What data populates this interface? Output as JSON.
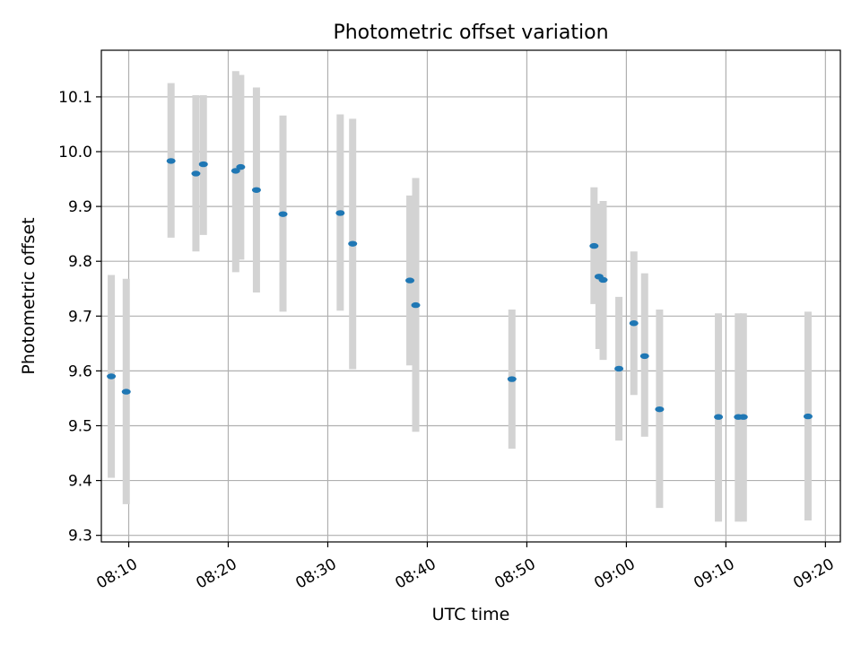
{
  "chart_data": {
    "type": "scatter",
    "title": "Photometric offset variation",
    "xlabel": "UTC time",
    "ylabel": "Photometric offset",
    "xlim": [
      "08:07:15",
      "09:21:30"
    ],
    "ylim": [
      9.288,
      10.185
    ],
    "x_ticks": [
      "08:10",
      "08:20",
      "08:30",
      "08:40",
      "08:50",
      "09:00",
      "09:10",
      "09:20"
    ],
    "y_ticks": [
      9.3,
      9.4,
      9.5,
      9.6,
      9.7,
      9.8,
      9.9,
      10.0,
      10.1
    ],
    "grid": true,
    "colors": {
      "marker": "#1f77b4",
      "errorbar": "#d3d3d3",
      "grid": "#b0b0b0",
      "axes": "#000000"
    },
    "series": [
      {
        "points": [
          {
            "t": "08:08:15",
            "y": 9.59,
            "ylo": 9.405,
            "yhi": 9.775
          },
          {
            "t": "08:09:45",
            "y": 9.562,
            "ylo": 9.357,
            "yhi": 9.768
          },
          {
            "t": "08:14:15",
            "y": 9.983,
            "ylo": 9.843,
            "yhi": 10.125
          },
          {
            "t": "08:16:45",
            "y": 9.96,
            "ylo": 9.818,
            "yhi": 10.103
          },
          {
            "t": "08:17:30",
            "y": 9.977,
            "ylo": 9.848,
            "yhi": 10.103
          },
          {
            "t": "08:20:45",
            "y": 9.965,
            "ylo": 9.78,
            "yhi": 10.147
          },
          {
            "t": "08:21:15",
            "y": 9.972,
            "ylo": 9.803,
            "yhi": 10.14
          },
          {
            "t": "08:22:50",
            "y": 9.93,
            "ylo": 9.743,
            "yhi": 10.117
          },
          {
            "t": "08:25:30",
            "y": 9.886,
            "ylo": 9.708,
            "yhi": 10.066
          },
          {
            "t": "08:31:15",
            "y": 9.888,
            "ylo": 9.71,
            "yhi": 10.068
          },
          {
            "t": "08:32:30",
            "y": 9.832,
            "ylo": 9.603,
            "yhi": 10.06
          },
          {
            "t": "08:38:15",
            "y": 9.765,
            "ylo": 9.61,
            "yhi": 9.92
          },
          {
            "t": "08:38:50",
            "y": 9.72,
            "ylo": 9.489,
            "yhi": 9.952
          },
          {
            "t": "08:48:30",
            "y": 9.585,
            "ylo": 9.458,
            "yhi": 9.712
          },
          {
            "t": "08:56:45",
            "y": 9.828,
            "ylo": 9.722,
            "yhi": 9.935
          },
          {
            "t": "08:57:15",
            "y": 9.772,
            "ylo": 9.64,
            "yhi": 9.905
          },
          {
            "t": "08:57:40",
            "y": 9.766,
            "ylo": 9.62,
            "yhi": 9.91
          },
          {
            "t": "08:59:15",
            "y": 9.604,
            "ylo": 9.473,
            "yhi": 9.735
          },
          {
            "t": "09:00:45",
            "y": 9.687,
            "ylo": 9.556,
            "yhi": 9.818
          },
          {
            "t": "09:01:50",
            "y": 9.627,
            "ylo": 9.48,
            "yhi": 9.778
          },
          {
            "t": "09:03:20",
            "y": 9.53,
            "ylo": 9.35,
            "yhi": 9.712
          },
          {
            "t": "09:09:15",
            "y": 9.516,
            "ylo": 9.325,
            "yhi": 9.705
          },
          {
            "t": "09:11:15",
            "y": 9.516,
            "ylo": 9.325,
            "yhi": 9.705
          },
          {
            "t": "09:11:45",
            "y": 9.516,
            "ylo": 9.325,
            "yhi": 9.705
          },
          {
            "t": "09:18:15",
            "y": 9.517,
            "ylo": 9.327,
            "yhi": 9.708
          }
        ]
      }
    ]
  }
}
